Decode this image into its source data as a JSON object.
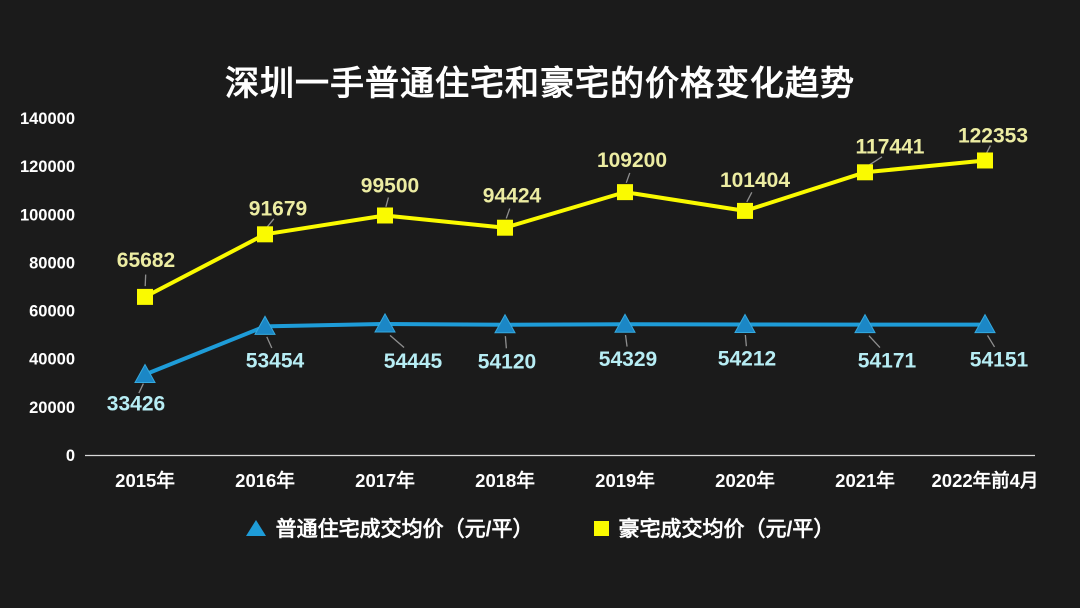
{
  "page": {
    "background": "#1b1b1b"
  },
  "chart_data": {
    "type": "line",
    "title": "深圳一手普通住宅和豪宅的价格变化趋势",
    "categories": [
      "2015年",
      "2016年",
      "2017年",
      "2018年",
      "2019年",
      "2020年",
      "2021年",
      "2022年前4月"
    ],
    "series": [
      {
        "name": "普通住宅成交均价（元/平）",
        "marker": "triangle",
        "color": "#1e9cd8",
        "marker_color": "#1b87c6",
        "marker_stroke": "#35aadf",
        "label_color": "#b7edf4",
        "values": [
          33426,
          53454,
          54445,
          54120,
          54329,
          54212,
          54171,
          54151
        ]
      },
      {
        "name": "豪宅成交均价（元/平）",
        "marker": "square",
        "color": "#fafa00",
        "marker_color": "#fafa00",
        "marker_stroke": "#fafa00",
        "label_color": "#ececa2",
        "values": [
          65682,
          91679,
          99500,
          94424,
          109200,
          101404,
          117441,
          122353
        ]
      }
    ],
    "yticks": [
      0,
      20000,
      40000,
      60000,
      80000,
      100000,
      120000,
      140000
    ],
    "ylim": [
      0,
      140000
    ],
    "grid": false,
    "data_labels": true,
    "legend_position": "bottom",
    "axis_color": "#d9d9d9",
    "leader_line_color": "#8f8f8f",
    "text_color": "#ffffff"
  }
}
